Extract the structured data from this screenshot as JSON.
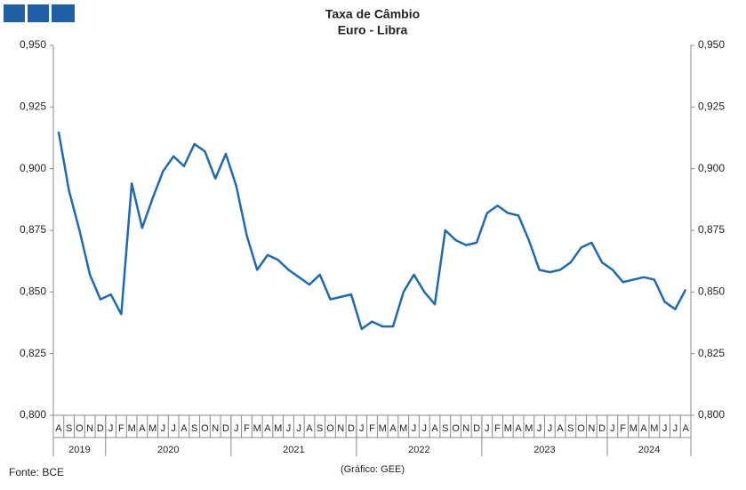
{
  "chart_data": {
    "type": "line",
    "title": "Taxa de Câmbio",
    "subtitle": "Euro - Libra",
    "categories": [
      "A",
      "S",
      "O",
      "N",
      "D",
      "J",
      "F",
      "M",
      "A",
      "M",
      "J",
      "J",
      "A",
      "S",
      "O",
      "N",
      "D",
      "J",
      "F",
      "M",
      "A",
      "M",
      "J",
      "J",
      "A",
      "S",
      "O",
      "N",
      "D",
      "J",
      "F",
      "M",
      "A",
      "M",
      "J",
      "J",
      "A",
      "S",
      "O",
      "N",
      "D",
      "J",
      "F",
      "M",
      "A",
      "M",
      "J",
      "J",
      "A",
      "S",
      "O",
      "N",
      "D",
      "J",
      "F",
      "M",
      "A",
      "M",
      "J",
      "J",
      "A"
    ],
    "year_groups": [
      {
        "label": "2019",
        "span": 5
      },
      {
        "label": "2020",
        "span": 12
      },
      {
        "label": "2021",
        "span": 12
      },
      {
        "label": "2022",
        "span": 12
      },
      {
        "label": "2023",
        "span": 12
      },
      {
        "label": "2024",
        "span": 8
      }
    ],
    "series": [
      {
        "color": "#1f6aae",
        "values": [
          0.915,
          0.891,
          0.875,
          0.857,
          0.847,
          0.849,
          0.841,
          0.894,
          0.876,
          0.888,
          0.899,
          0.905,
          0.901,
          0.91,
          0.907,
          0.896,
          0.906,
          0.893,
          0.873,
          0.859,
          0.865,
          0.863,
          0.859,
          0.856,
          0.853,
          0.857,
          0.847,
          0.848,
          0.849,
          0.835,
          0.838,
          0.836,
          0.836,
          0.85,
          0.857,
          0.85,
          0.845,
          0.875,
          0.871,
          0.869,
          0.87,
          0.882,
          0.885,
          0.882,
          0.881,
          0.871,
          0.859,
          0.858,
          0.859,
          0.862,
          0.868,
          0.87,
          0.862,
          0.859,
          0.854,
          0.855,
          0.856,
          0.855,
          0.846,
          0.843,
          0.851
        ]
      }
    ],
    "ylim": [
      0.8,
      0.95
    ],
    "yticks": [
      {
        "value": 0.8,
        "label": "0,800"
      },
      {
        "value": 0.825,
        "label": "0,825"
      },
      {
        "value": 0.85,
        "label": "0,850"
      },
      {
        "value": 0.875,
        "label": "0,875"
      },
      {
        "value": 0.9,
        "label": "0,900"
      },
      {
        "value": 0.925,
        "label": "0,925"
      },
      {
        "value": 0.95,
        "label": "0,950"
      }
    ],
    "source": "Fonte: BCE",
    "credit": "(Gráfico: GEE)"
  }
}
